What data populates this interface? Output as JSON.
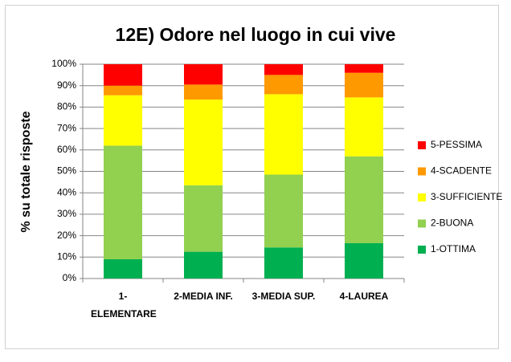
{
  "chart_data": {
    "type": "stacked_bar_percent",
    "title": "12E) Odore nel luogo in cui vive",
    "ylabel": "% su totale risposte",
    "categories": [
      "1-ELEMENTARE",
      "2-MEDIA INF.",
      "3-MEDIA SUP.",
      "4-LAUREA"
    ],
    "series": [
      {
        "name": "1-OTTIMA",
        "color": "#00b050",
        "values": [
          9,
          12.5,
          14.5,
          16.5
        ]
      },
      {
        "name": "2-BUONA",
        "color": "#92d050",
        "values": [
          53,
          31,
          34,
          40.5
        ]
      },
      {
        "name": "3-SUFFICIENTE",
        "color": "#ffff00",
        "values": [
          23.5,
          40,
          37.5,
          27.5
        ]
      },
      {
        "name": "4-SCADENTE",
        "color": "#ff9900",
        "values": [
          4.5,
          7,
          9,
          11.5
        ]
      },
      {
        "name": "5-PESSIMA",
        "color": "#ff0000",
        "values": [
          10,
          9.5,
          5,
          4
        ]
      }
    ],
    "ylim": [
      0,
      100
    ],
    "yticks": [
      {
        "value": 0,
        "label": "0%"
      },
      {
        "value": 10,
        "label": "10%"
      },
      {
        "value": 20,
        "label": "20%"
      },
      {
        "value": 30,
        "label": "30%"
      },
      {
        "value": 40,
        "label": "40%"
      },
      {
        "value": 50,
        "label": "50%"
      },
      {
        "value": 60,
        "label": "60%"
      },
      {
        "value": 70,
        "label": "70%"
      },
      {
        "value": 80,
        "label": "80%"
      },
      {
        "value": 90,
        "label": "90%"
      },
      {
        "value": 100,
        "label": "100%"
      }
    ],
    "grid": true,
    "legend": "right"
  }
}
